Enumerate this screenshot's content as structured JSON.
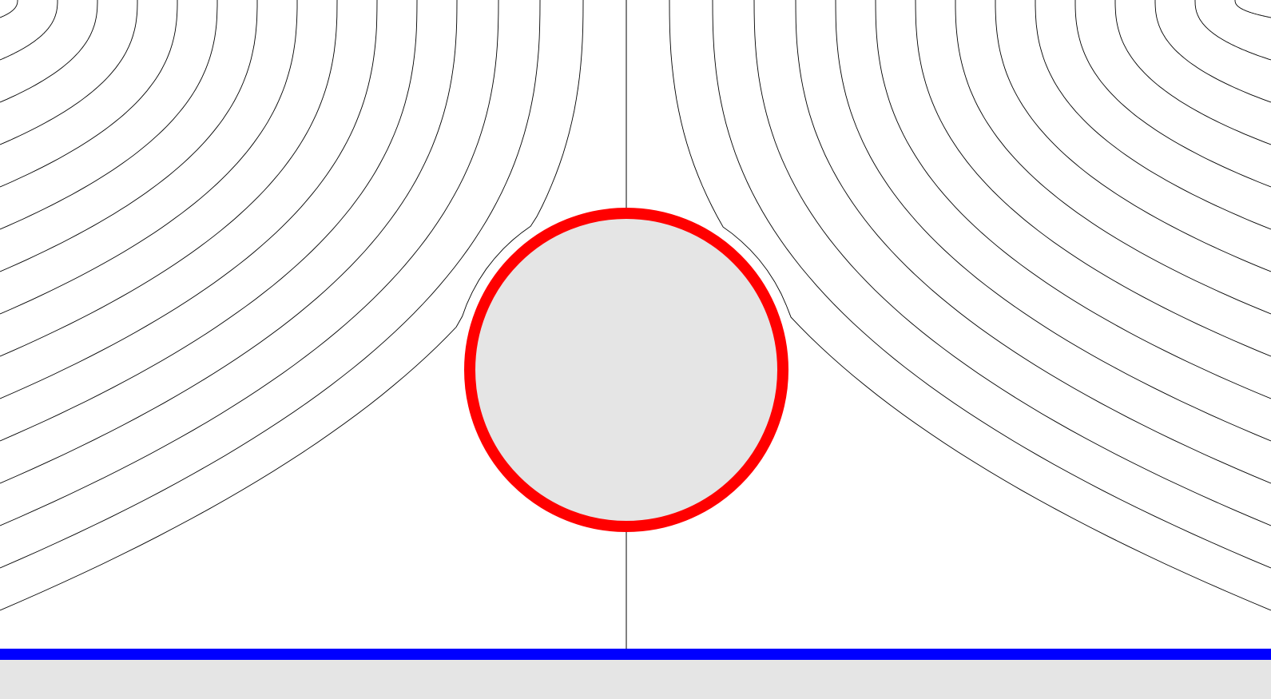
{
  "diagram": {
    "type": "streamline-plot",
    "colors": {
      "background": "#ffffff",
      "streamline": "#000000",
      "obstacle_fill": "#e5e5e5",
      "obstacle_stroke": "#ff0000",
      "wall_line": "#0000ff",
      "ground_fill": "#e5e5e5"
    },
    "streamline_count_per_side": 16
  }
}
